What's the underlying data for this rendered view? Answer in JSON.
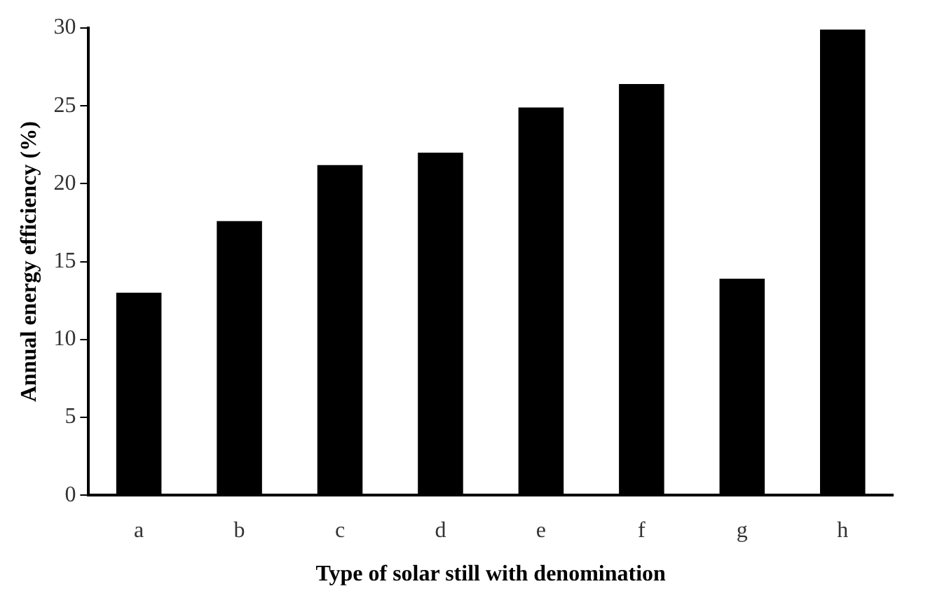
{
  "chart_data": {
    "type": "bar",
    "xlabel": "Type of solar still with denomination",
    "ylabel": "Annual energy efficiency (%)",
    "categories": [
      "a",
      "b",
      "c",
      "d",
      "e",
      "f",
      "g",
      "h"
    ],
    "values": [
      13,
      17.6,
      21.2,
      22,
      24.9,
      26.4,
      13.9,
      29.9
    ],
    "color": "#000000",
    "ylim": [
      0,
      30
    ],
    "yticks": [
      0,
      5,
      10,
      15,
      20,
      25,
      30
    ],
    "grid": false,
    "legend": false
  }
}
